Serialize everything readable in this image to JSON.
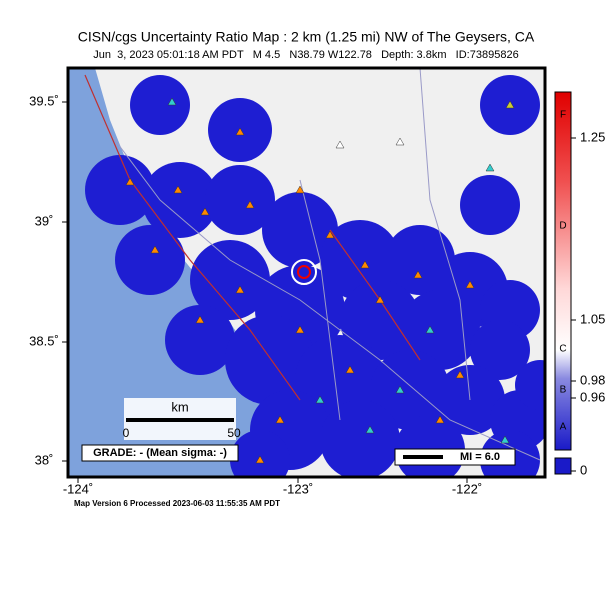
{
  "header": {
    "title": "CISN/cgs Uncertainty Ratio Map : 2 km (1.25 mi) NW of The Geysers, CA",
    "subtitle": "Jun  3, 2023 05:01:18 AM PDT   M 4.5   N38.79 W122.78   Depth: 3.8km   ID:73895826"
  },
  "map": {
    "lat_labels": [
      "39.5˚",
      "39˚",
      "38.5˚",
      "38˚"
    ],
    "lon_labels": [
      "-124˚",
      "-123˚",
      "-122˚"
    ],
    "scale_bar": {
      "unit": "km",
      "labels": [
        "0",
        "50"
      ]
    },
    "grade": "GRADE: - (Mean sigma: -)",
    "mi_legend": "MI = 6.0"
  },
  "colorbar": {
    "labels": [
      "F",
      "1.25",
      "D",
      "1.05",
      "C",
      "0.98",
      "B",
      "0.96",
      "A",
      "0"
    ]
  },
  "footer": "Map Version 6 Processed 2023-06-03 11:55:35 AM PDT"
}
